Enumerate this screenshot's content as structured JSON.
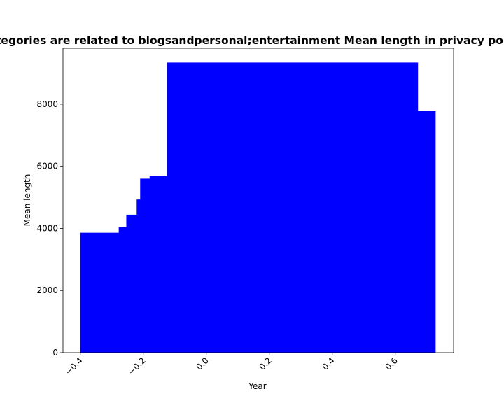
{
  "chart_data": {
    "type": "bar",
    "title": "Categories are related to blogsandpersonal;entertainment Mean length in privacy policies",
    "xlabel": "Year",
    "ylabel": "Mean length",
    "xlim": [
      -0.455,
      0.785
    ],
    "ylim": [
      0,
      9800
    ],
    "xticks": [
      "−0.4",
      "−0.2",
      "0.0",
      "0.2",
      "0.4",
      "0.6"
    ],
    "xtick_values": [
      -0.4,
      -0.2,
      0.0,
      0.2,
      0.4,
      0.6
    ],
    "yticks": [
      "0",
      "2000",
      "4000",
      "6000",
      "8000"
    ],
    "ytick_values": [
      0,
      2000,
      4000,
      6000,
      8000
    ],
    "grid": false,
    "bar_color": "#0000ff",
    "bars": [
      {
        "x0": -0.4,
        "x1": -0.278,
        "value": 3860
      },
      {
        "x0": -0.278,
        "x1": -0.254,
        "value": 4040
      },
      {
        "x0": -0.254,
        "x1": -0.221,
        "value": 4440
      },
      {
        "x0": -0.221,
        "x1": -0.21,
        "value": 4930
      },
      {
        "x0": -0.21,
        "x1": -0.18,
        "value": 5600
      },
      {
        "x0": -0.18,
        "x1": -0.125,
        "value": 5680
      },
      {
        "x0": -0.125,
        "x1": 0.671,
        "value": 9340
      },
      {
        "x0": 0.671,
        "x1": 0.727,
        "value": 7780
      }
    ]
  }
}
